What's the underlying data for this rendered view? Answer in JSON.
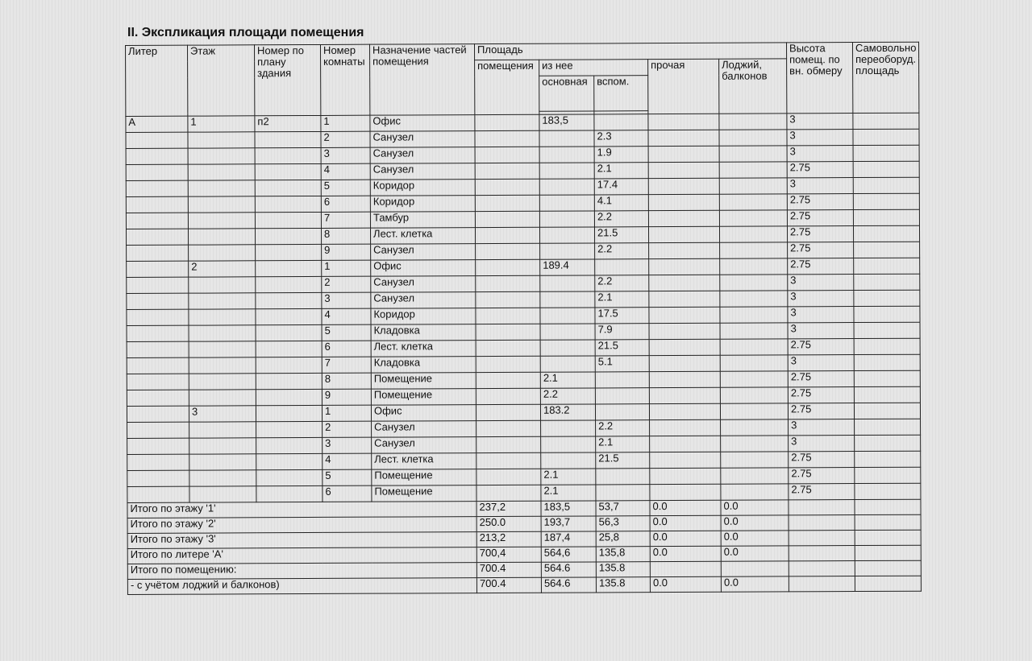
{
  "title": "II. Экспликация площади помещения",
  "headers": {
    "liter": "Литер",
    "floor": "Этаж",
    "plan": "Номер по плану здания",
    "room": "Номер комнаты",
    "purpose": "Назначение частей помещения",
    "area": "Площадь",
    "area_total": "помещения",
    "of_it": "из нее",
    "main": "основная",
    "aux": "вспом.",
    "other": "прочая",
    "loggia": "Лоджий, балконов",
    "height": "Высота помещ. по вн. обмеру",
    "self": "Самовольно переоборуд. площадь"
  },
  "rows": [
    [
      "А",
      "1",
      "п2",
      "1",
      "Офис",
      "",
      "183,5",
      "",
      "",
      "",
      "3",
      ""
    ],
    [
      "",
      "",
      "",
      "2",
      "Санузел",
      "",
      "",
      "2.3",
      "",
      "",
      "3",
      ""
    ],
    [
      "",
      "",
      "",
      "3",
      "Санузел",
      "",
      "",
      "1.9",
      "",
      "",
      "3",
      ""
    ],
    [
      "",
      "",
      "",
      "4",
      "Санузел",
      "",
      "",
      "2.1",
      "",
      "",
      "2.75",
      ""
    ],
    [
      "",
      "",
      "",
      "5",
      "Коридор",
      "",
      "",
      "17.4",
      "",
      "",
      "3",
      ""
    ],
    [
      "",
      "",
      "",
      "6",
      "Коридор",
      "",
      "",
      "4.1",
      "",
      "",
      "2.75",
      ""
    ],
    [
      "",
      "",
      "",
      "7",
      "Тамбур",
      "",
      "",
      "2.2",
      "",
      "",
      "2.75",
      ""
    ],
    [
      "",
      "",
      "",
      "8",
      "Лест. клетка",
      "",
      "",
      "21.5",
      "",
      "",
      "2.75",
      ""
    ],
    [
      "",
      "",
      "",
      "9",
      "Санузел",
      "",
      "",
      "2.2",
      "",
      "",
      "2.75",
      ""
    ],
    [
      "",
      "2",
      "",
      "1",
      "Офис",
      "",
      "189.4",
      "",
      "",
      "",
      "2.75",
      ""
    ],
    [
      "",
      "",
      "",
      "2",
      "Санузел",
      "",
      "",
      "2.2",
      "",
      "",
      "3",
      ""
    ],
    [
      "",
      "",
      "",
      "3",
      "Санузел",
      "",
      "",
      "2.1",
      "",
      "",
      "3",
      ""
    ],
    [
      "",
      "",
      "",
      "4",
      "Коридор",
      "",
      "",
      "17.5",
      "",
      "",
      "3",
      ""
    ],
    [
      "",
      "",
      "",
      "5",
      "Кладовка",
      "",
      "",
      "7.9",
      "",
      "",
      "3",
      ""
    ],
    [
      "",
      "",
      "",
      "6",
      "Лест. клетка",
      "",
      "",
      "21.5",
      "",
      "",
      "2.75",
      ""
    ],
    [
      "",
      "",
      "",
      "7",
      "Кладовка",
      "",
      "",
      "5.1",
      "",
      "",
      "3",
      ""
    ],
    [
      "",
      "",
      "",
      "8",
      "Помещение",
      "",
      "2.1",
      "",
      "",
      "",
      "2.75",
      ""
    ],
    [
      "",
      "",
      "",
      "9",
      "Помещение",
      "",
      "2.2",
      "",
      "",
      "",
      "2.75",
      ""
    ],
    [
      "",
      "3",
      "",
      "1",
      "Офис",
      "",
      "183.2",
      "",
      "",
      "",
      "2.75",
      ""
    ],
    [
      "",
      "",
      "",
      "2",
      "Санузел",
      "",
      "",
      "2.2",
      "",
      "",
      "3",
      ""
    ],
    [
      "",
      "",
      "",
      "3",
      "Санузел",
      "",
      "",
      "2.1",
      "",
      "",
      "3",
      ""
    ],
    [
      "",
      "",
      "",
      "4",
      "Лест. клетка",
      "",
      "",
      "21.5",
      "",
      "",
      "2.75",
      ""
    ],
    [
      "",
      "",
      "",
      "5",
      "Помещение",
      "",
      "2.1",
      "",
      "",
      "",
      "2.75",
      ""
    ],
    [
      "",
      "",
      "",
      "6",
      "Помещение",
      "",
      "2.1",
      "",
      "",
      "",
      "2.75",
      ""
    ]
  ],
  "totals": [
    [
      "Итого по этажу '1'",
      "237,2",
      "183,5",
      "53,7",
      "0.0",
      "0.0"
    ],
    [
      "Итого по этажу '2'",
      "250.0",
      "193,7",
      "56,3",
      "0.0",
      "0.0"
    ],
    [
      "Итого по этажу '3'",
      "213,2",
      "187,4",
      "25,8",
      "0.0",
      "0.0"
    ],
    [
      "Итого по литере 'А'",
      "700,4",
      "564,6",
      "135,8",
      "0.0",
      "0.0"
    ],
    [
      "Итого по помещению:",
      "700.4",
      "564.6",
      "135.8",
      "",
      ""
    ],
    [
      "- с учётом лоджий и балконов)",
      "700.4",
      "564.6",
      "135.8",
      "0.0",
      "0.0"
    ]
  ]
}
